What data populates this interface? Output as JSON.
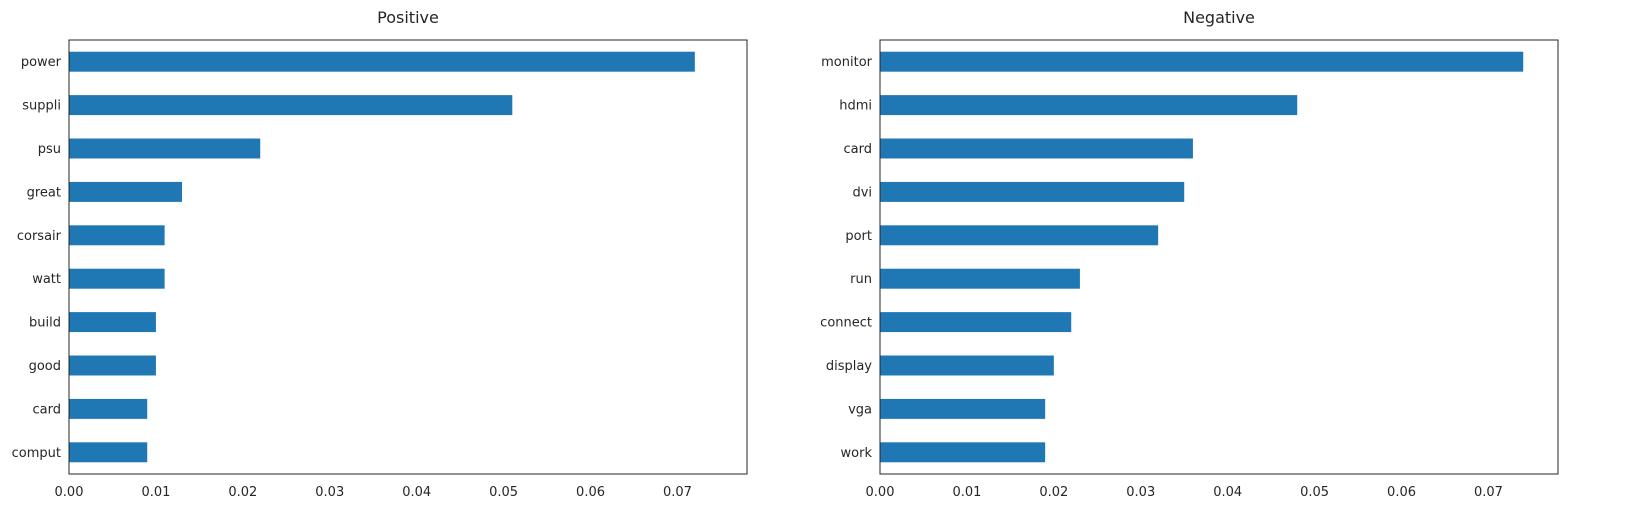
{
  "chart_data": [
    {
      "type": "bar",
      "orientation": "horizontal",
      "title": "Positive",
      "categories": [
        "power",
        "suppli",
        "psu",
        "great",
        "corsair",
        "watt",
        "build",
        "good",
        "card",
        "comput"
      ],
      "values": [
        0.072,
        0.051,
        0.022,
        0.013,
        0.011,
        0.011,
        0.01,
        0.01,
        0.009,
        0.009
      ],
      "xlim": [
        0,
        0.078
      ],
      "xticks": [
        "0.00",
        "0.01",
        "0.02",
        "0.03",
        "0.04",
        "0.05",
        "0.06",
        "0.07"
      ],
      "grid": false,
      "bar_color": "#1f77b4"
    },
    {
      "type": "bar",
      "orientation": "horizontal",
      "title": "Negative",
      "categories": [
        "monitor",
        "hdmi",
        "card",
        "dvi",
        "port",
        "run",
        "connect",
        "display",
        "vga",
        "work"
      ],
      "values": [
        0.074,
        0.048,
        0.036,
        0.035,
        0.032,
        0.023,
        0.022,
        0.02,
        0.019,
        0.019
      ],
      "xlim": [
        0,
        0.078
      ],
      "xticks": [
        "0.00",
        "0.01",
        "0.02",
        "0.03",
        "0.04",
        "0.05",
        "0.06",
        "0.07"
      ],
      "grid": false,
      "bar_color": "#1f77b4"
    }
  ]
}
